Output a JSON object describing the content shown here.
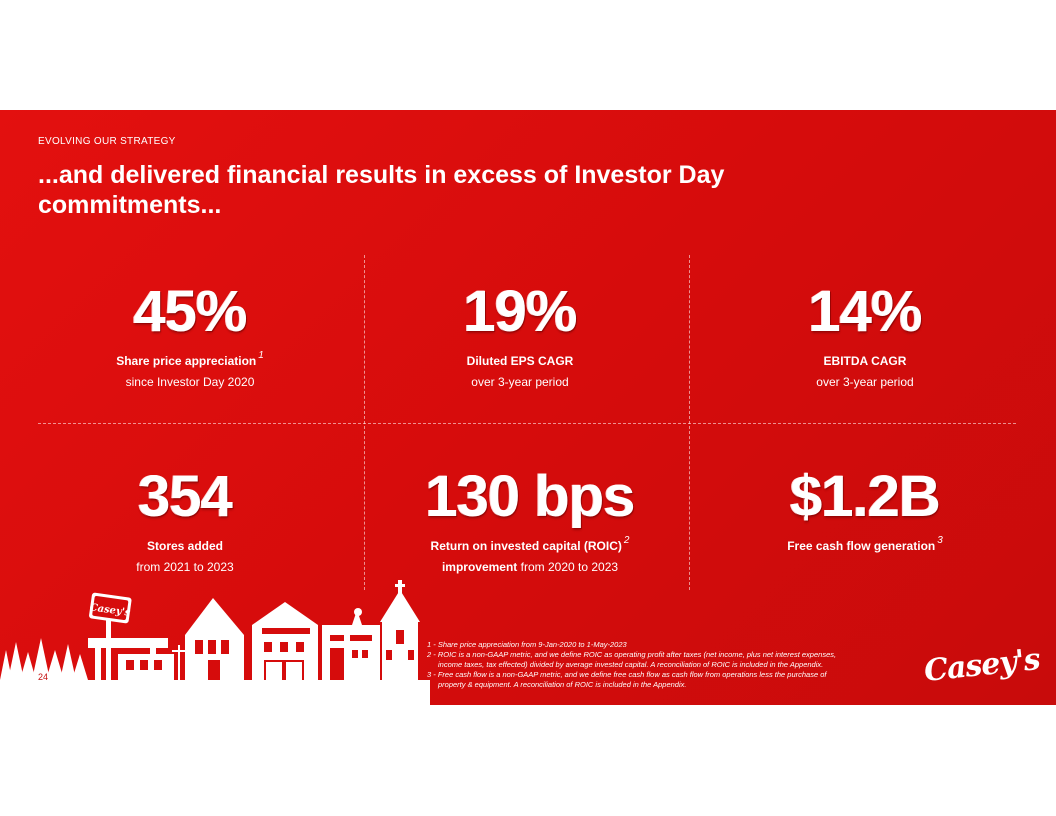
{
  "header": {
    "kicker": "EVOLVING OUR STRATEGY",
    "title": "...and delivered financial results in excess of Investor Day commitments..."
  },
  "metrics": [
    {
      "value": "45%",
      "line1": "Share price appreciation",
      "sup": "1",
      "line2": "since Investor Day 2020"
    },
    {
      "value": "19%",
      "line1": "Diluted EPS CAGR",
      "sup": "",
      "line2": "over 3-year period"
    },
    {
      "value": "14%",
      "line1": "EBITDA CAGR",
      "sup": "",
      "line2": "over 3-year period"
    },
    {
      "value": "354",
      "line1": "Stores added",
      "sup": "",
      "line2": "from 2021 to 2023"
    },
    {
      "value": "130 bps",
      "line1": "Return on invested capital (ROIC)",
      "sup": "2",
      "line2_bold": "improvement",
      "line2": " from 2020 to 2023"
    },
    {
      "value": "$1.2B",
      "line1": "Free cash flow generation",
      "sup": "3",
      "line2": ""
    }
  ],
  "footnotes": {
    "fn1": "1 - Share price appreciation from 9-Jan-2020 to 1-May-2023",
    "fn2a": "2 - ROIC is a non-GAAP metric, and we define ROIC as operating profit after taxes (net income, plus net interest expenses,",
    "fn2b": "income taxes, tax effected) divided by average invested capital. A reconciliation of ROIC is included in the Appendix.",
    "fn3a": "3 - Free cash flow is a non-GAAP metric, and we define free cash flow as cash flow from operations less the purchase of",
    "fn3b": "property & equipment. A reconciliation of ROIC is included in the Appendix."
  },
  "page_number": "24",
  "brand": {
    "logo_text": "Casey's",
    "sign_text": "Casey's",
    "accent": "#d60c0c"
  }
}
